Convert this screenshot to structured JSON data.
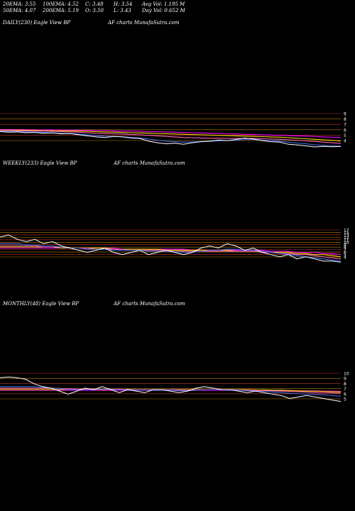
{
  "stats": {
    "row1": [
      "20EMA: 3.55",
      "100EMA: 4.52",
      "C: 3.48",
      "H: 3.54",
      "Avg Vol: 1.195 M"
    ],
    "row2": [
      "50EMA: 4.07",
      "200EMA: 5.19",
      "O: 3.50",
      "L: 3.43",
      "Day Vol: 0.652 M"
    ]
  },
  "colors": {
    "price": "#ffffff",
    "ema20": "#4169e1",
    "ema50": "#ff69b4",
    "ema100": "#ffd700",
    "ema200": "#ff00ff",
    "band": "#b8860b",
    "levels": "#c0392b"
  },
  "chart_data": [
    {
      "type": "line",
      "title": "DAILY(230) Eagle View BP",
      "subtitle": "AF charts MunafaSutra.com",
      "y_ticks": [
        "9",
        "8",
        "7",
        "6",
        "5",
        "4"
      ],
      "ylim": [
        3,
        10
      ],
      "series": [
        {
          "values": [
            6.3,
            6.2,
            6.25,
            6.1,
            6.15,
            6.0,
            6.05,
            5.9,
            5.95,
            5.7,
            5.5,
            5.3,
            5.2,
            5.4,
            5.3,
            5.1,
            5.0,
            4.5,
            4.2,
            4.0,
            4.1,
            3.9,
            4.2,
            4.4,
            4.5,
            4.7,
            4.6,
            4.8,
            5.1,
            4.9,
            4.6,
            4.4,
            4.3,
            3.9,
            3.8,
            3.6,
            3.4,
            3.5,
            3.45,
            3.48
          ]
        },
        {
          "values": [
            6.4,
            6.35,
            6.3,
            6.25,
            6.2,
            6.15,
            6.1,
            6.0,
            5.95,
            5.85,
            5.7,
            5.55,
            5.45,
            5.4,
            5.35,
            5.2,
            5.1,
            4.9,
            4.7,
            4.5,
            4.4,
            4.3,
            4.35,
            4.4,
            4.45,
            4.55,
            4.6,
            4.65,
            4.8,
            4.8,
            4.7,
            4.6,
            4.5,
            4.3,
            4.15,
            4.0,
            3.8,
            3.7,
            3.6,
            3.55
          ]
        },
        {
          "values": [
            6.5,
            6.5,
            6.45,
            6.45,
            6.4,
            6.4,
            6.35,
            6.3,
            6.25,
            6.2,
            6.1,
            6.0,
            5.95,
            5.9,
            5.85,
            5.75,
            5.7,
            5.6,
            5.5,
            5.4,
            5.3,
            5.2,
            5.15,
            5.1,
            5.05,
            5.05,
            5.0,
            5.0,
            5.0,
            5.0,
            4.95,
            4.9,
            4.85,
            4.75,
            4.65,
            4.55,
            4.45,
            4.3,
            4.2,
            4.07
          ]
        },
        {
          "values": [
            6.6,
            6.6,
            6.6,
            6.55,
            6.55,
            6.5,
            6.5,
            6.45,
            6.45,
            6.4,
            6.35,
            6.3,
            6.25,
            6.2,
            6.15,
            6.1,
            6.05,
            6.0,
            5.95,
            5.9,
            5.85,
            5.8,
            5.75,
            5.7,
            5.65,
            5.6,
            5.55,
            5.5,
            5.45,
            5.4,
            5.35,
            5.3,
            5.25,
            5.15,
            5.05,
            4.95,
            4.85,
            4.75,
            4.65,
            4.52
          ]
        },
        {
          "values": [
            6.7,
            6.7,
            6.7,
            6.7,
            6.65,
            6.65,
            6.65,
            6.6,
            6.6,
            6.55,
            6.55,
            6.5,
            6.5,
            6.45,
            6.4,
            6.4,
            6.35,
            6.3,
            6.3,
            6.25,
            6.2,
            6.15,
            6.1,
            6.05,
            6.0,
            5.95,
            5.9,
            5.85,
            5.8,
            5.75,
            5.7,
            5.65,
            5.6,
            5.55,
            5.5,
            5.45,
            5.4,
            5.3,
            5.25,
            5.19
          ]
        }
      ]
    },
    {
      "type": "line",
      "title": "WEEKLY(233) Eagle View BP",
      "subtitle": "AF charts MunafaSutra.com",
      "y_ticks": [
        "17",
        "15",
        "13",
        "12",
        "11",
        "10",
        "9",
        "8",
        "7",
        "6",
        "5",
        "4"
      ],
      "ylim": [
        2,
        19
      ],
      "series": [
        {
          "values": [
            15,
            16,
            14,
            13,
            14,
            12,
            13,
            11,
            10,
            9,
            8,
            9,
            10,
            8,
            7,
            8,
            9,
            7,
            8,
            9,
            8,
            7,
            8,
            10,
            11,
            10,
            12,
            11,
            9,
            10,
            8,
            7,
            6,
            7,
            5,
            6,
            5,
            4,
            4,
            3.5
          ]
        },
        {
          "values": [
            12,
            12,
            12,
            11.5,
            11.5,
            11,
            11,
            10.5,
            10,
            10,
            9.5,
            9.5,
            9.5,
            9,
            9,
            9,
            9,
            8.5,
            8.5,
            8.5,
            8.5,
            8,
            8,
            8.5,
            9,
            9,
            9.5,
            9.5,
            9,
            9,
            8.5,
            8,
            7.5,
            7,
            6.5,
            6,
            5.5,
            5,
            4.5,
            4
          ]
        },
        {
          "values": [
            11,
            11,
            11,
            11,
            11,
            10.5,
            10.5,
            10.5,
            10,
            10,
            10,
            9.5,
            9.5,
            9.5,
            9.5,
            9,
            9,
            9,
            9,
            9,
            8.5,
            8.5,
            8.5,
            8.5,
            8.5,
            8.5,
            8.5,
            8.5,
            8.5,
            8.5,
            8,
            8,
            7.5,
            7.5,
            7,
            7,
            6.5,
            6,
            5.5,
            5
          ]
        },
        {
          "values": [
            10.5,
            10.5,
            10.5,
            10.5,
            10.5,
            10.5,
            10.5,
            10,
            10,
            10,
            10,
            10,
            10,
            9.5,
            9.5,
            9.5,
            9.5,
            9.5,
            9.5,
            9,
            9,
            9,
            9,
            9,
            9,
            9,
            9,
            8.5,
            8.5,
            8.5,
            8.5,
            8,
            8,
            8,
            7.5,
            7.5,
            7,
            7,
            6.5,
            6
          ]
        },
        {
          "values": [
            10,
            10,
            10,
            10,
            10,
            10,
            10,
            10,
            10,
            10,
            10,
            10,
            10,
            10,
            9.5,
            9.5,
            9.5,
            9.5,
            9.5,
            9.5,
            9.5,
            9.5,
            9,
            9,
            9,
            9,
            9,
            9,
            9,
            9,
            9,
            8.5,
            8.5,
            8.5,
            8,
            8,
            8,
            7.5,
            7.5,
            7
          ]
        }
      ]
    },
    {
      "type": "line",
      "title": "MONTHLY(48) Eagle View BP",
      "subtitle": "AF charts MunafaSutra.com",
      "y_ticks": [
        "10",
        "9",
        "8",
        "7",
        "6",
        "5"
      ],
      "ylim": [
        2,
        14
      ],
      "series": [
        {
          "values": [
            12,
            12.3,
            12,
            11.5,
            10,
            9,
            8.5,
            7.5,
            6.5,
            7.5,
            8.5,
            8,
            9,
            8,
            7,
            8,
            7.5,
            7,
            8,
            8,
            7.5,
            7,
            7.5,
            8.5,
            9,
            8.5,
            8,
            8,
            7.5,
            7,
            7.5,
            7,
            6.5,
            6,
            5,
            5.5,
            6,
            5.5,
            5,
            4.5,
            4
          ]
        },
        {
          "values": [
            9,
            9,
            9,
            9,
            9,
            8.8,
            8.5,
            8.3,
            8,
            8,
            8,
            8,
            8.2,
            8,
            8,
            8,
            7.8,
            7.8,
            7.8,
            7.8,
            7.8,
            7.6,
            7.6,
            7.8,
            8,
            8,
            8,
            7.8,
            7.8,
            7.6,
            7.5,
            7.4,
            7.2,
            7,
            6.8,
            6.6,
            6.5,
            6.4,
            6.2,
            6,
            5.8
          ]
        },
        {
          "values": [
            8.5,
            8.5,
            8.5,
            8.5,
            8.5,
            8.5,
            8.5,
            8.4,
            8.3,
            8.2,
            8.2,
            8.2,
            8.2,
            8.2,
            8.1,
            8.1,
            8,
            8,
            8,
            8,
            8,
            7.9,
            7.9,
            7.9,
            8,
            8,
            8,
            8,
            7.9,
            7.8,
            7.8,
            7.7,
            7.6,
            7.5,
            7.4,
            7.3,
            7.2,
            7.1,
            7,
            6.9,
            6.8
          ]
        },
        {
          "values": [
            8,
            8,
            8,
            8,
            8,
            8,
            8,
            8,
            8,
            8,
            8,
            8,
            8,
            8,
            8,
            8,
            8,
            8,
            8,
            8,
            8,
            8,
            8,
            8,
            8,
            8,
            8,
            8,
            8,
            8,
            7.9,
            7.9,
            7.8,
            7.8,
            7.7,
            7.6,
            7.5,
            7.5,
            7.4,
            7.3,
            7.2
          ]
        },
        {
          "values": [
            7.8,
            7.8,
            7.8,
            7.8,
            7.8,
            7.8,
            7.8,
            7.8,
            7.8,
            7.8,
            7.8,
            7.8,
            7.8,
            7.8,
            7.8,
            7.8,
            7.8,
            7.8,
            7.8,
            7.8,
            7.8,
            7.8,
            7.8,
            7.8,
            7.8,
            7.8,
            7.8,
            7.8,
            7.8,
            7.8,
            7.8,
            7.8,
            7.7,
            7.7,
            7.7,
            7.6,
            7.6,
            7.6,
            7.5,
            7.5,
            7.4
          ]
        }
      ]
    }
  ]
}
